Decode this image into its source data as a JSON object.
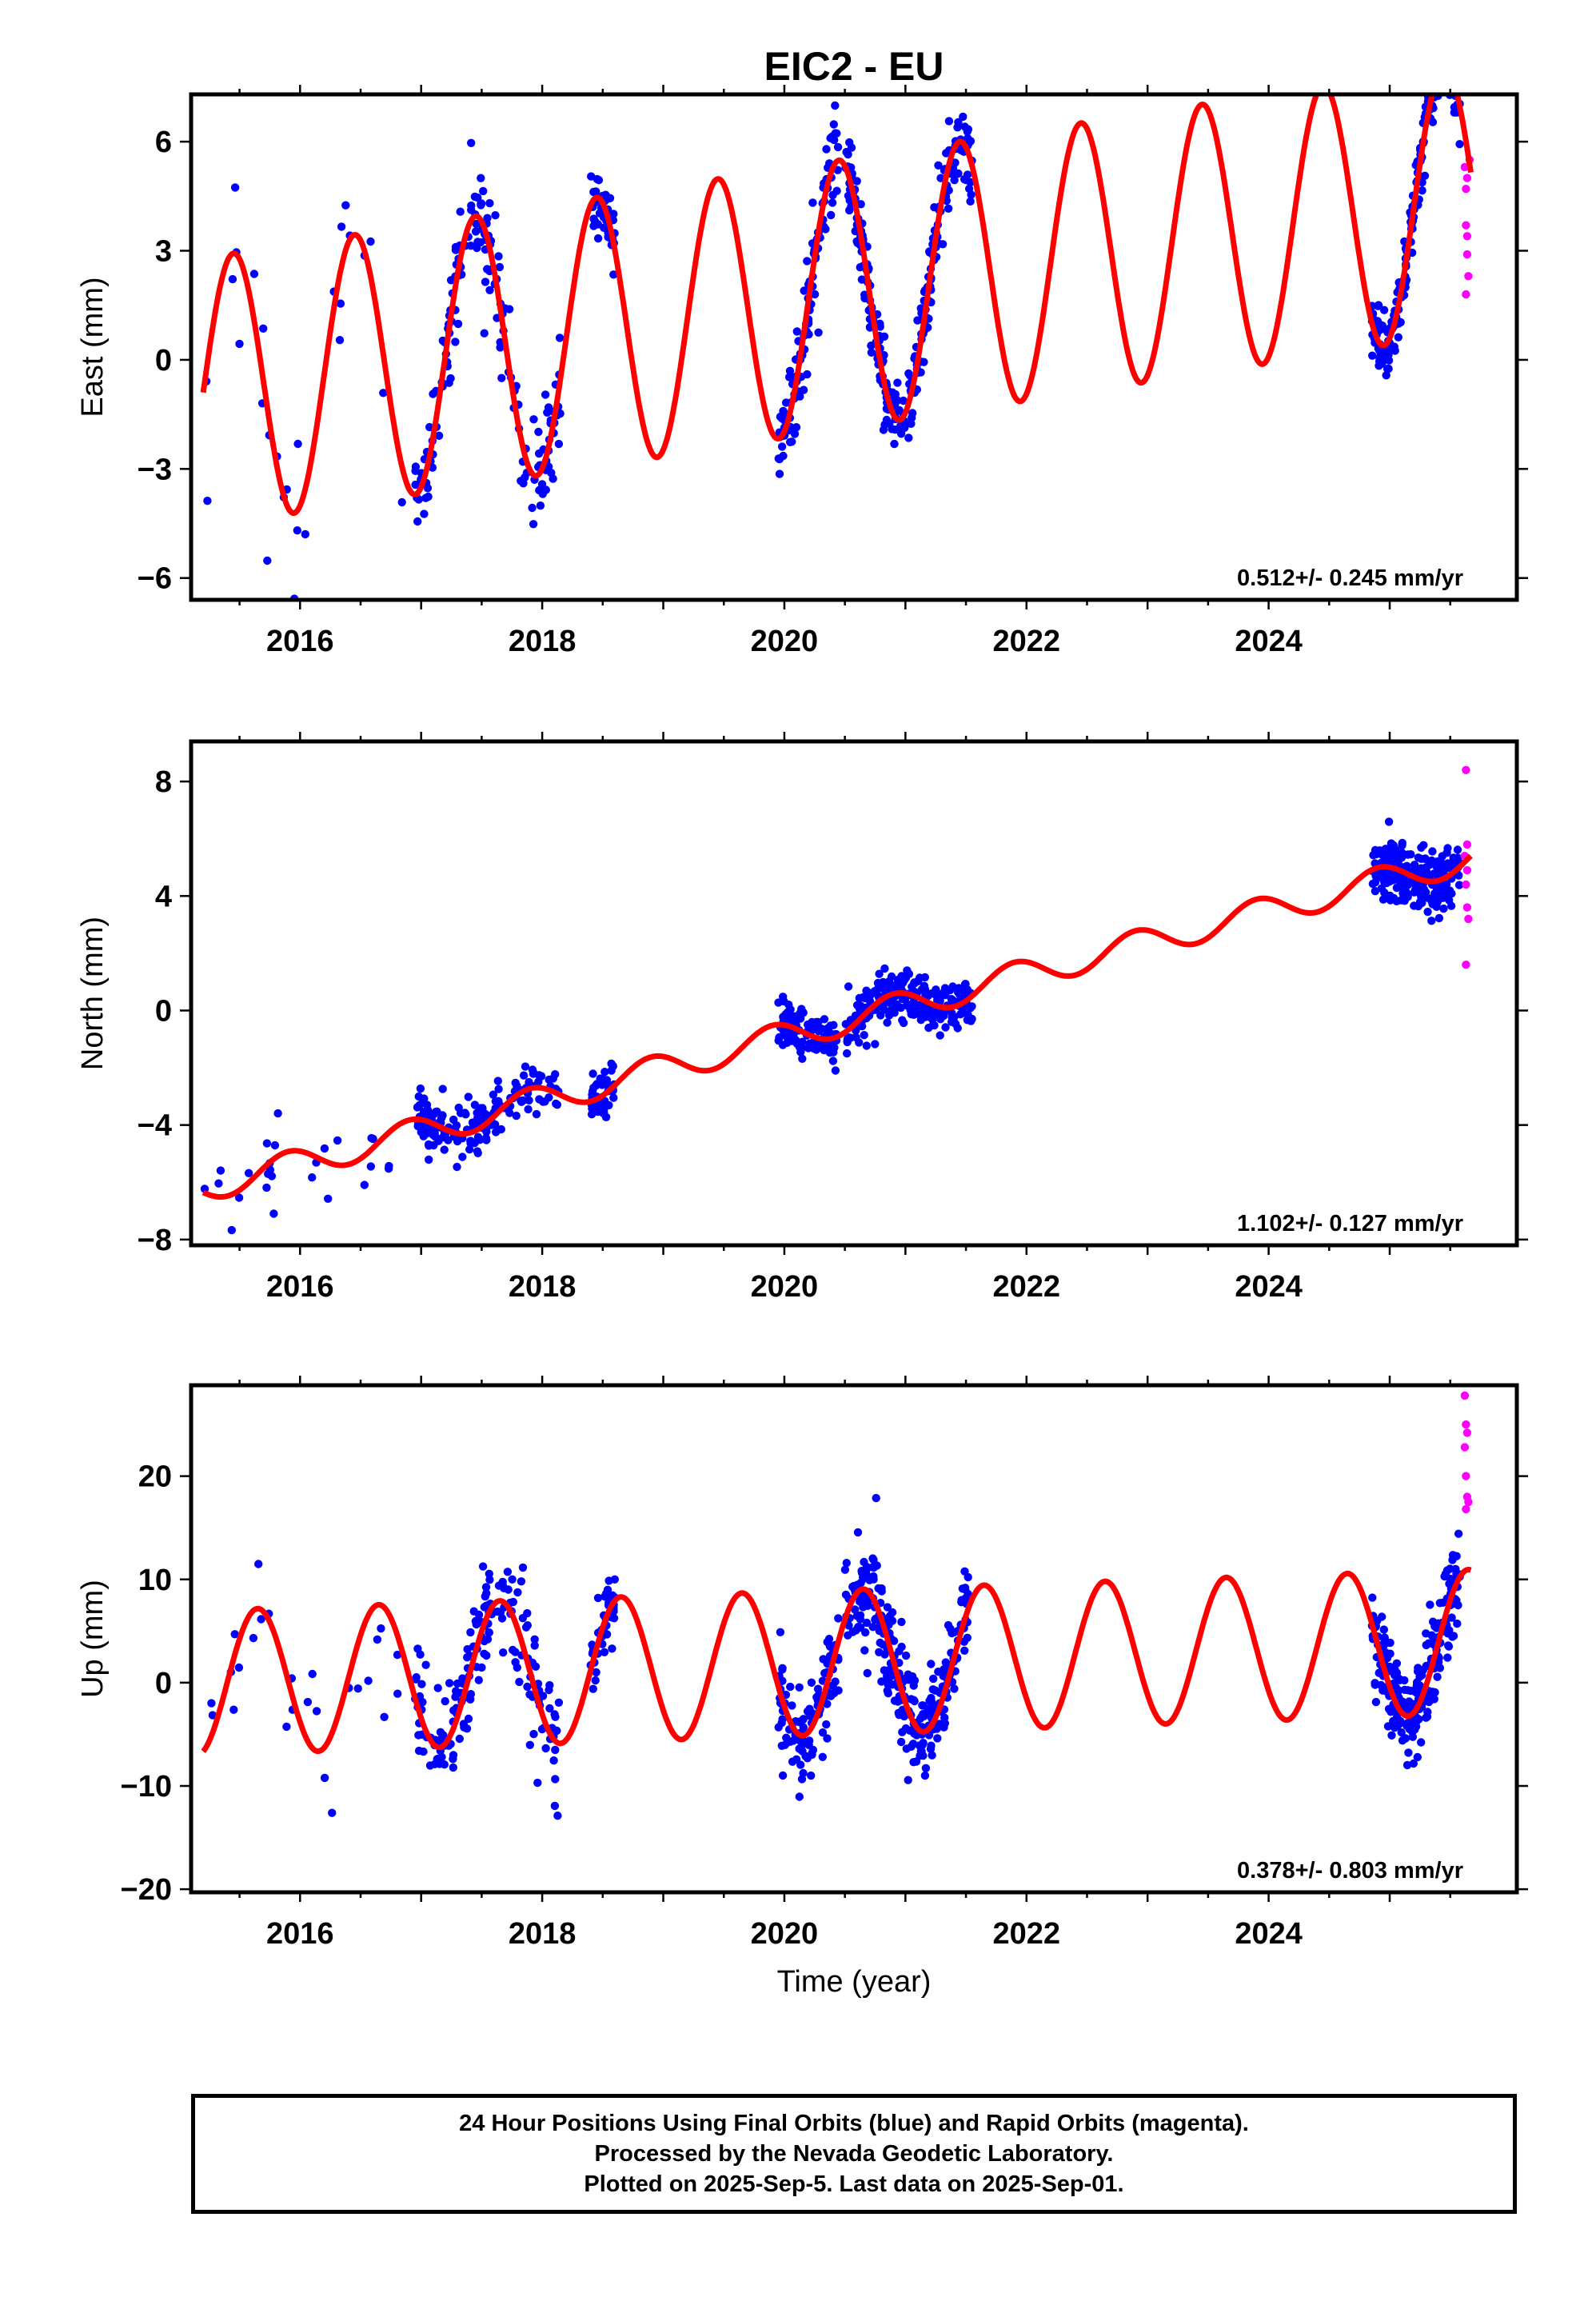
{
  "chart_data": [
    {
      "type": "scatter",
      "title": "EIC2 - EU",
      "ylabel": "East (mm)",
      "xlabel": "",
      "xlim": [
        2015.1,
        2026.05
      ],
      "ylim": [
        -6.6,
        7.3
      ],
      "xticks": [
        2016,
        2018,
        2020,
        2022,
        2024
      ],
      "yticks": [
        -6,
        -3,
        0,
        3,
        6
      ],
      "rate_label": "0.512+/- 0.245 mm/yr",
      "model": {
        "trend": 0.512,
        "intercept": -0.9,
        "amplitude": 3.7,
        "peak_phase": 0.45,
        "start": 2015.2,
        "end": 2025.67
      },
      "colors": {
        "final": "#0000ff",
        "rapid": "#ff00ff",
        "model": "#ff0000"
      },
      "clusters": [
        {
          "range": [
            2015.2,
            2016.9
          ],
          "n": 28,
          "noise": 2.5
        },
        {
          "range": [
            2016.95,
            2017.75
          ],
          "n": 110,
          "noise": 1.3
        },
        {
          "range": [
            2017.75,
            2018.15
          ],
          "n": 50,
          "noise": 1.4
        },
        {
          "range": [
            2018.4,
            2018.6
          ],
          "n": 45,
          "noise": 1.0
        },
        {
          "range": [
            2019.95,
            2020.45
          ],
          "n": 110,
          "noise": 1.2
        },
        {
          "range": [
            2020.5,
            2021.1
          ],
          "n": 160,
          "noise": 1.0
        },
        {
          "range": [
            2021.1,
            2021.55
          ],
          "n": 110,
          "noise": 1.0
        },
        {
          "range": [
            2024.85,
            2025.58
          ],
          "n": 220,
          "noise": 0.9
        }
      ],
      "rapid_points": [
        [
          2025.62,
          5.3
        ],
        [
          2025.63,
          4.7
        ],
        [
          2025.64,
          5.0
        ],
        [
          2025.63,
          3.7
        ],
        [
          2025.64,
          2.9
        ],
        [
          2025.65,
          2.3
        ],
        [
          2025.63,
          1.8
        ],
        [
          2025.66,
          5.5
        ],
        [
          2025.64,
          3.4
        ]
      ]
    },
    {
      "type": "scatter",
      "title": "",
      "ylabel": "North (mm)",
      "xlabel": "",
      "xlim": [
        2015.1,
        2026.05
      ],
      "ylim": [
        -8.2,
        9.4
      ],
      "xticks": [
        2016,
        2018,
        2020,
        2022,
        2024
      ],
      "yticks": [
        -8,
        -4,
        0,
        4,
        8
      ],
      "rate_label": "1.102+/- 0.127 mm/yr",
      "model": {
        "trend": 1.102,
        "intercept": -6.2,
        "amplitude": 0.5,
        "peak_phase": 0.9,
        "start": 2015.2,
        "end": 2025.67
      },
      "colors": {
        "final": "#0000ff",
        "rapid": "#ff00ff",
        "model": "#ff0000"
      },
      "clusters": [
        {
          "range": [
            2015.2,
            2016.9
          ],
          "n": 26,
          "noise": 0.9
        },
        {
          "range": [
            2016.95,
            2017.75
          ],
          "n": 120,
          "noise": 0.8
        },
        {
          "range": [
            2017.75,
            2018.15
          ],
          "n": 40,
          "noise": 0.8
        },
        {
          "range": [
            2018.4,
            2018.6
          ],
          "n": 45,
          "noise": 0.7
        },
        {
          "range": [
            2019.95,
            2020.45
          ],
          "n": 110,
          "noise": 0.8
        },
        {
          "range": [
            2020.5,
            2021.1
          ],
          "n": 160,
          "noise": 0.8
        },
        {
          "range": [
            2021.1,
            2021.55
          ],
          "n": 110,
          "noise": 0.8
        },
        {
          "range": [
            2024.85,
            2025.58
          ],
          "n": 240,
          "noise": 0.9
        }
      ],
      "rapid_points": [
        [
          2025.63,
          8.4
        ],
        [
          2025.64,
          5.8
        ],
        [
          2025.62,
          5.4
        ],
        [
          2025.63,
          4.4
        ],
        [
          2025.64,
          3.6
        ],
        [
          2025.65,
          3.2
        ],
        [
          2025.63,
          1.6
        ],
        [
          2025.64,
          4.9
        ]
      ]
    },
    {
      "type": "scatter",
      "title": "",
      "ylabel": "Up (mm)",
      "xlabel": "Time (year)",
      "xlim": [
        2015.1,
        2026.05
      ],
      "ylim": [
        -20.3,
        28.8
      ],
      "xticks": [
        2016,
        2018,
        2020,
        2022,
        2024
      ],
      "yticks": [
        -20,
        -10,
        0,
        10,
        20
      ],
      "rate_label": "0.378+/- 0.803 mm/yr",
      "model": {
        "trend": 0.378,
        "intercept": 0.0,
        "amplitude": 7.0,
        "peak_phase": 0.65,
        "start": 2015.2,
        "end": 2025.67
      },
      "colors": {
        "final": "#0000ff",
        "rapid": "#ff00ff",
        "model": "#ff0000"
      },
      "clusters": [
        {
          "range": [
            2015.2,
            2016.9
          ],
          "n": 26,
          "noise": 6.0
        },
        {
          "range": [
            2016.95,
            2017.75
          ],
          "n": 120,
          "noise": 4.5
        },
        {
          "range": [
            2017.75,
            2018.15
          ],
          "n": 50,
          "noise": 5.5
        },
        {
          "range": [
            2018.4,
            2018.6
          ],
          "n": 45,
          "noise": 3.0
        },
        {
          "range": [
            2019.95,
            2020.45
          ],
          "n": 110,
          "noise": 4.5
        },
        {
          "range": [
            2020.5,
            2021.1
          ],
          "n": 160,
          "noise": 5.0
        },
        {
          "range": [
            2021.1,
            2021.55
          ],
          "n": 110,
          "noise": 4.0
        },
        {
          "range": [
            2024.85,
            2025.58
          ],
          "n": 240,
          "noise": 4.2
        }
      ],
      "rapid_points": [
        [
          2025.62,
          27.8
        ],
        [
          2025.63,
          25.0
        ],
        [
          2025.64,
          24.2
        ],
        [
          2025.62,
          22.8
        ],
        [
          2025.63,
          20.0
        ],
        [
          2025.64,
          18.0
        ],
        [
          2025.63,
          16.8
        ],
        [
          2025.65,
          17.5
        ]
      ]
    }
  ],
  "caption": {
    "line1": "24 Hour Positions Using Final Orbits (blue) and Rapid Orbits (magenta).",
    "line2": "Processed by the Nevada Geodetic Laboratory.",
    "line3": "Plotted on 2025-Sep-5. Last data on 2025-Sep-01."
  }
}
